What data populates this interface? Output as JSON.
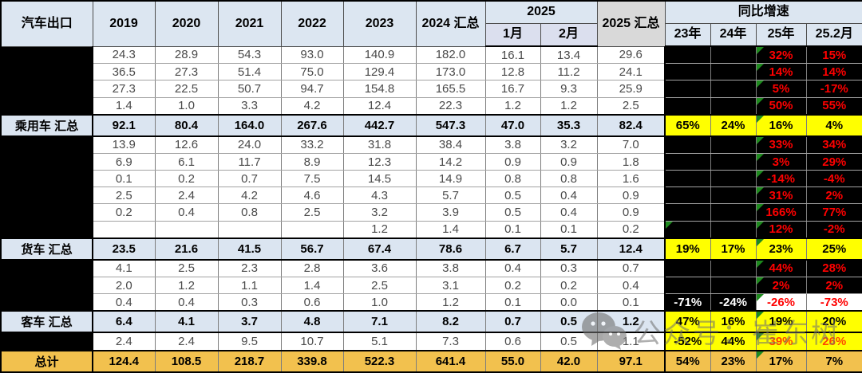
{
  "table": {
    "corner": "汽车出口",
    "year_headers": [
      "2019",
      "2020",
      "2021",
      "2022",
      "2023",
      "2024 汇总"
    ],
    "h2025": "2025",
    "h2025_sub": [
      "1月",
      "2月"
    ],
    "h2025_total": "2025 汇总",
    "growth_header": "同比增速",
    "growth_sub": [
      "23年",
      "24年",
      "25年",
      "25.2月"
    ],
    "colors": {
      "header_blue": "#dce6f1",
      "month_lavender": "#dbdfee",
      "header_gray": "#d9d9d9",
      "subtotal_blue": "#dbe5f1",
      "total_orange": "#f2c14e",
      "highlight_yellow": "#ffff00",
      "growth_red": "#ff0000",
      "redacted_black": "#000000",
      "triangle_green": "#1d8a1d"
    },
    "rows": [
      {
        "label": "",
        "kind": "detail",
        "v": [
          "24.3",
          "28.9",
          "54.3",
          "93.0",
          "140.9",
          "182.0",
          "16.1",
          "13.4",
          "29.6"
        ],
        "g": [
          "",
          "",
          "32%",
          "15%"
        ],
        "tri": [
          2
        ]
      },
      {
        "label": "",
        "kind": "detail",
        "v": [
          "36.5",
          "27.3",
          "51.4",
          "75.0",
          "129.4",
          "173.0",
          "12.8",
          "11.2",
          "24.1"
        ],
        "g": [
          "",
          "",
          "14%",
          "14%"
        ],
        "tri": [
          2
        ]
      },
      {
        "label": "",
        "kind": "detail",
        "v": [
          "27.3",
          "22.5",
          "50.7",
          "94.7",
          "154.8",
          "165.5",
          "16.7",
          "9.3",
          "25.9"
        ],
        "g": [
          "",
          "",
          "5%",
          "-17%"
        ],
        "tri": [
          2
        ]
      },
      {
        "label": "",
        "kind": "detail",
        "v": [
          "1.4",
          "1.0",
          "3.3",
          "4.2",
          "12.4",
          "22.3",
          "1.2",
          "1.2",
          "2.5"
        ],
        "g": [
          "",
          "",
          "50%",
          "55%"
        ],
        "tri": [
          2
        ]
      },
      {
        "label": "乘用车 汇总",
        "kind": "subtotal",
        "v": [
          "92.1",
          "80.4",
          "164.0",
          "267.6",
          "442.7",
          "547.3",
          "47.0",
          "35.3",
          "82.4"
        ],
        "g": [
          "65%",
          "24%",
          "16%",
          "4%"
        ],
        "tri": [
          2
        ]
      },
      {
        "label": "",
        "kind": "detail",
        "v": [
          "13.9",
          "12.6",
          "24.0",
          "33.2",
          "31.8",
          "38.4",
          "3.8",
          "3.2",
          "7.0"
        ],
        "g": [
          "",
          "",
          "33%",
          "34%"
        ],
        "tri": [
          2
        ]
      },
      {
        "label": "",
        "kind": "detail",
        "v": [
          "6.9",
          "6.1",
          "11.7",
          "8.9",
          "12.3",
          "14.2",
          "0.9",
          "0.9",
          "1.8"
        ],
        "g": [
          "",
          "",
          "3%",
          "29%"
        ],
        "tri": [
          2
        ]
      },
      {
        "label": "",
        "kind": "detail",
        "v": [
          "0.1",
          "0.2",
          "0.7",
          "7.5",
          "14.5",
          "14.9",
          "0.8",
          "0.8",
          "1.6"
        ],
        "g": [
          "",
          "",
          "-14%",
          "-4%"
        ],
        "tri": [
          2
        ]
      },
      {
        "label": "",
        "kind": "detail",
        "v": [
          "2.5",
          "2.4",
          "4.2",
          "4.6",
          "4.3",
          "5.7",
          "0.5",
          "0.4",
          "0.9"
        ],
        "g": [
          "",
          "",
          "31%",
          "2%"
        ],
        "tri": [
          2
        ]
      },
      {
        "label": "",
        "kind": "detail",
        "v": [
          "0.2",
          "0.4",
          "0.8",
          "2.5",
          "3.2",
          "3.9",
          "0.5",
          "0.4",
          "0.9"
        ],
        "g": [
          "",
          "",
          "166%",
          "77%"
        ],
        "tri": [
          2
        ]
      },
      {
        "label": "",
        "kind": "detail",
        "v": [
          "",
          "",
          "",
          "",
          "1.2",
          "1.4",
          "0.1",
          "0.1",
          "0.2"
        ],
        "g": [
          "",
          "",
          "12%",
          "-2%"
        ],
        "tri": [
          0,
          2
        ]
      },
      {
        "label": "货车 汇总",
        "kind": "subtotal",
        "v": [
          "23.5",
          "21.6",
          "41.5",
          "56.7",
          "67.4",
          "78.6",
          "6.7",
          "5.7",
          "12.4"
        ],
        "g": [
          "19%",
          "17%",
          "23%",
          "25%"
        ],
        "tri": [
          2
        ]
      },
      {
        "label": "",
        "kind": "detail",
        "v": [
          "4.1",
          "2.5",
          "2.3",
          "2.8",
          "3.6",
          "3.8",
          "0.4",
          "0.3",
          "0.7"
        ],
        "g": [
          "",
          "",
          "44%",
          "28%"
        ],
        "tri": [
          2
        ]
      },
      {
        "label": "",
        "kind": "detail",
        "v": [
          "2.0",
          "1.2",
          "1.1",
          "1.4",
          "2.5",
          "3.1",
          "0.2",
          "0.2",
          "0.4"
        ],
        "g": [
          "",
          "",
          "2%",
          "2%"
        ],
        "tri": [
          2
        ]
      },
      {
        "label": "",
        "kind": "peek",
        "v": [
          "0.4",
          "0.4",
          "0.3",
          "0.6",
          "1.0",
          "1.2",
          "0.1",
          "0.0",
          "0.1"
        ],
        "g": [
          "-71%",
          "-24%",
          "-26%",
          "-73%"
        ],
        "tri": [
          2
        ]
      },
      {
        "label": "客车 汇总",
        "kind": "subtotal",
        "v": [
          "6.4",
          "4.1",
          "3.7",
          "4.8",
          "7.1",
          "8.2",
          "0.7",
          "0.5",
          "1.2"
        ],
        "g": [
          "47%",
          "16%",
          "19%",
          "20%"
        ],
        "tri": [
          2
        ]
      },
      {
        "label": "",
        "kind": "detail-hl",
        "v": [
          "2.4",
          "2.4",
          "9.5",
          "10.7",
          "5.1",
          "7.3",
          "0.6",
          "0.5",
          "1.1"
        ],
        "g": [
          "-52%",
          "44%",
          "39%",
          "26%"
        ],
        "tri": [
          2
        ]
      },
      {
        "label": "总计",
        "kind": "total",
        "v": [
          "124.4",
          "108.5",
          "218.7",
          "339.8",
          "522.3",
          "641.4",
          "55.0",
          "42.0",
          "97.1"
        ],
        "g": [
          "54%",
          "23%",
          "17%",
          "7%"
        ],
        "tri": [
          2
        ]
      }
    ]
  },
  "watermark": {
    "text": "公众号：崔东树",
    "icon": "wechat-icon"
  }
}
